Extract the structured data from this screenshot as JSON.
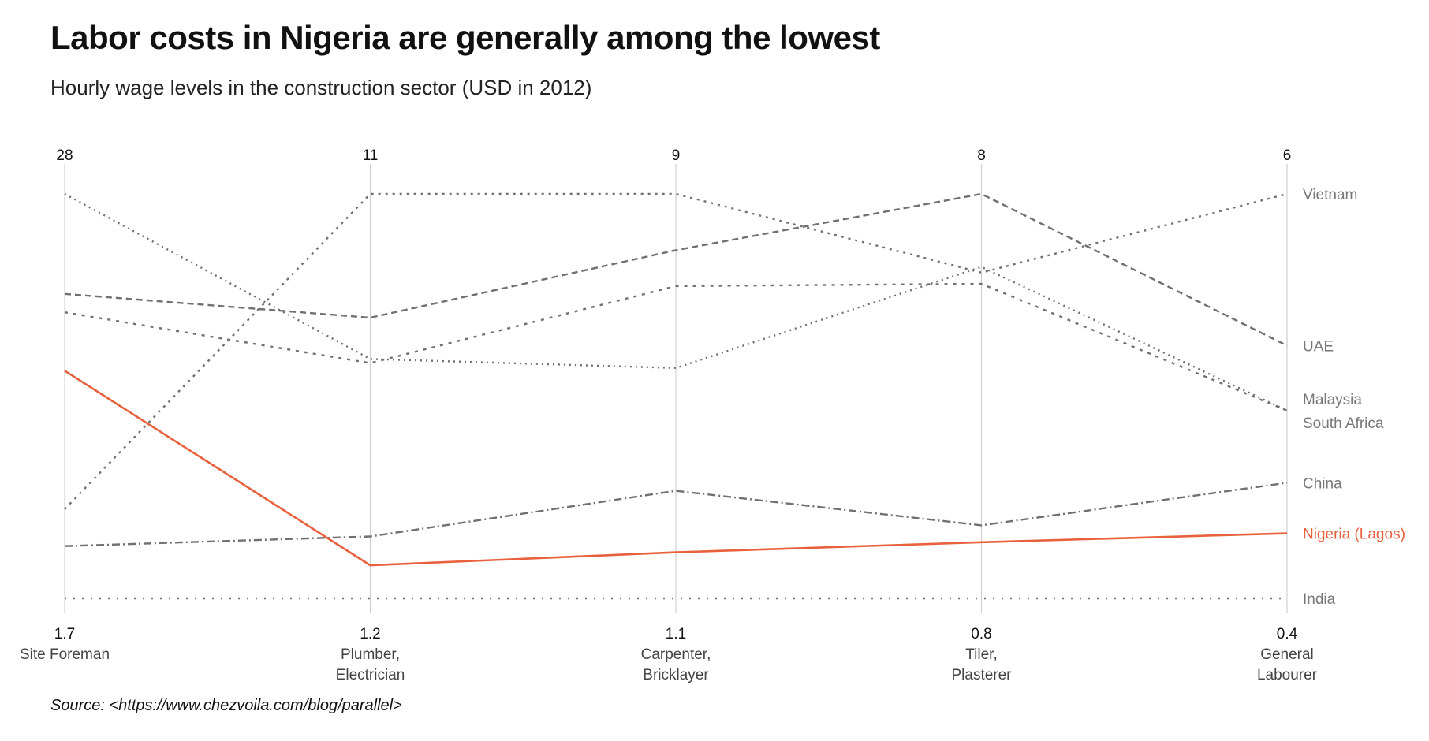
{
  "title": "Labor costs in Nigeria are generally among the lowest",
  "subtitle": "Hourly wage levels in the construction sector (USD in 2012)",
  "caption": "Source: <https://www.chezvoila.com/blog/parallel>",
  "colors": {
    "highlight": "#e8603c",
    "series": "#707070",
    "axis": "#d0d0d0",
    "label": "#777777"
  },
  "chart_data": {
    "type": "parallel-coordinates",
    "axes": [
      {
        "name": "Site Foreman",
        "name_lines": [
          "Site Foreman"
        ],
        "min_label": "1.7",
        "max_label": "28",
        "min": 1.7,
        "max": 28
      },
      {
        "name": "Plumber, Electrician",
        "name_lines": [
          "Plumber,",
          "Electrician"
        ],
        "min_label": "1.2",
        "max_label": "11",
        "min": 1.2,
        "max": 11
      },
      {
        "name": "Carpenter, Bricklayer",
        "name_lines": [
          "Carpenter,",
          "Bricklayer"
        ],
        "min_label": "1.1",
        "max_label": "9",
        "min": 1.1,
        "max": 9
      },
      {
        "name": "Tiler, Plasterer",
        "name_lines": [
          "Tiler,",
          "Plasterer"
        ],
        "min_label": "0.8",
        "max_label": "8",
        "min": 0.8,
        "max": 8
      },
      {
        "name": "General Labourer",
        "name_lines": [
          "General",
          "Labourer"
        ],
        "min_label": "0.4",
        "max_label": "6",
        "min": 0.4,
        "max": 6
      }
    ],
    "series": [
      {
        "name": "Vietnam",
        "values": [
          7.5,
          11,
          9,
          6.6,
          6
        ],
        "dash": "3,6",
        "highlight": false
      },
      {
        "name": "UAE",
        "values": [
          21.5,
          8.0,
          7.9,
          8,
          3.9
        ],
        "dash": "8,5",
        "highlight": false
      },
      {
        "name": "Malaysia",
        "values": [
          20.3,
          6.9,
          7.2,
          6.4,
          3.0
        ],
        "dash": "4,7",
        "highlight": false
      },
      {
        "name": "South Africa",
        "values": [
          28,
          7.0,
          5.6,
          6.7,
          3.0
        ],
        "dash": "2,5",
        "highlight": false
      },
      {
        "name": "China",
        "values": [
          5.1,
          2.7,
          3.2,
          2.1,
          2.0
        ],
        "dash": "10,4,2,4",
        "highlight": false
      },
      {
        "name": "Nigeria (Lagos)",
        "values": [
          16.5,
          2.0,
          2.0,
          1.8,
          1.3
        ],
        "dash": "",
        "highlight": true
      },
      {
        "name": "India",
        "values": [
          1.7,
          1.2,
          1.1,
          0.8,
          0.4
        ],
        "dash": "2,9",
        "highlight": false
      }
    ],
    "label_order": [
      "Vietnam",
      "UAE",
      "Malaysia",
      "South Africa",
      "China",
      "Nigeria (Lagos)",
      "India"
    ],
    "grid": false,
    "legend": "right, direct labels"
  }
}
